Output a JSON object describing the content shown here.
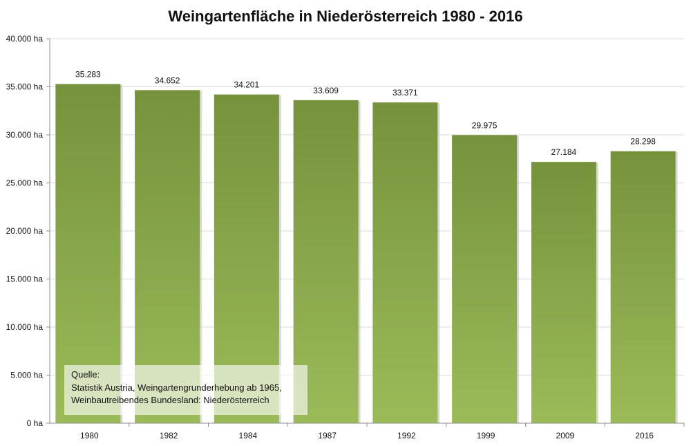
{
  "chart_data": {
    "type": "bar",
    "title": "Weingartenfläche in Niederösterreich 1980 - 2016",
    "categories": [
      "1980",
      "1982",
      "1984",
      "1987",
      "1992",
      "1999",
      "2009",
      "2016"
    ],
    "values": [
      35283,
      34652,
      34201,
      33609,
      33371,
      29975,
      27184,
      28298
    ],
    "value_labels": [
      "35.283",
      "34.652",
      "34.201",
      "33.609",
      "33.371",
      "29.975",
      "27.184",
      "28.298"
    ],
    "xlabel": "",
    "ylabel": "",
    "ylim": [
      0,
      40000
    ],
    "yticks": [
      0,
      5000,
      10000,
      15000,
      20000,
      25000,
      30000,
      35000,
      40000
    ],
    "ytick_labels": [
      "0 ha",
      "5.000 ha",
      "10.000 ha",
      "15.000 ha",
      "20.000 ha",
      "25.000 ha",
      "30.000 ha",
      "35.000 ha",
      "40.000 ha"
    ],
    "grid": true,
    "colors": {
      "bar_top": "#76923c",
      "bar_bottom": "#9bbb59",
      "grid": "#d9d9d9",
      "axis": "#8c8c8c"
    }
  },
  "source_note": {
    "line1": "Quelle:",
    "line2": "Statistik Austria, Weingartengrunderhebung ab 1965,",
    "line3": "Weinbautreibendes Bundesland: Niederösterreich"
  }
}
